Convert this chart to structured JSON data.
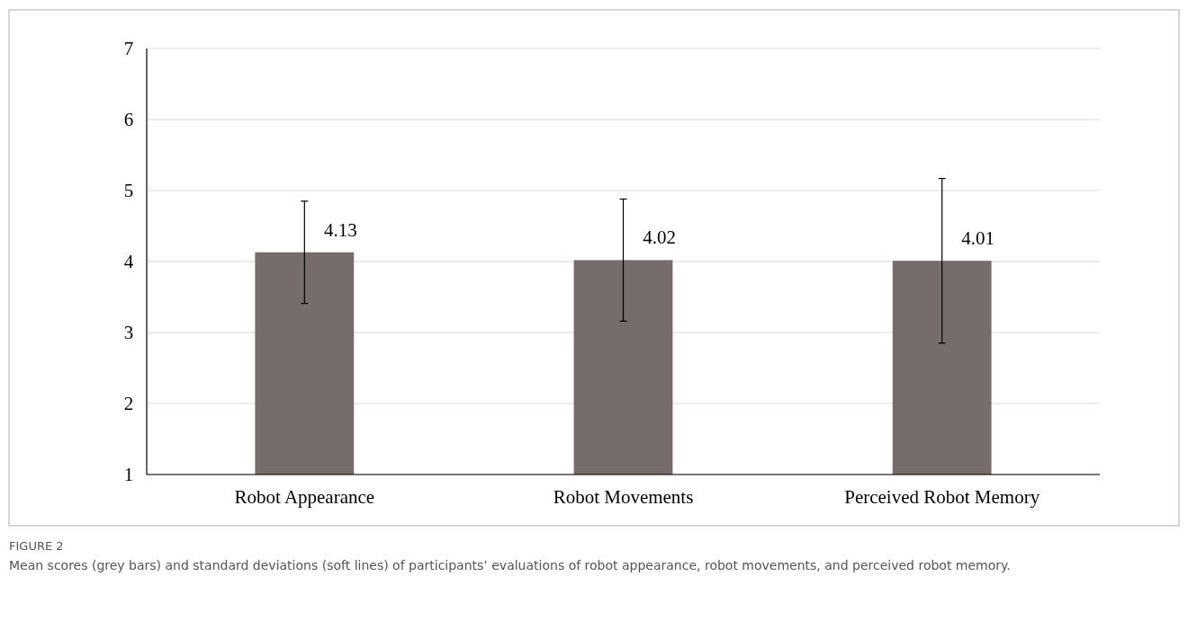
{
  "chart_data": {
    "type": "bar",
    "title": "FIGURE 2",
    "categories": [
      "Robot Appearance",
      "Robot Movements",
      "Perceived Robot Memory"
    ],
    "values": [
      4.13,
      4.02,
      4.01
    ],
    "errors": [
      0.72,
      0.86,
      1.16
    ],
    "color": "#766c6c",
    "ylim": [
      1,
      7
    ],
    "yticks": [
      1,
      2,
      3,
      4,
      5,
      6,
      7
    ],
    "grid": "y",
    "data_labels": true,
    "annotations": [
      "Mean scores (grey bars) and standard deviations (soft lines) of participants’ evaluations of robot appearance, robot movements, and perceived robot memory."
    ]
  }
}
